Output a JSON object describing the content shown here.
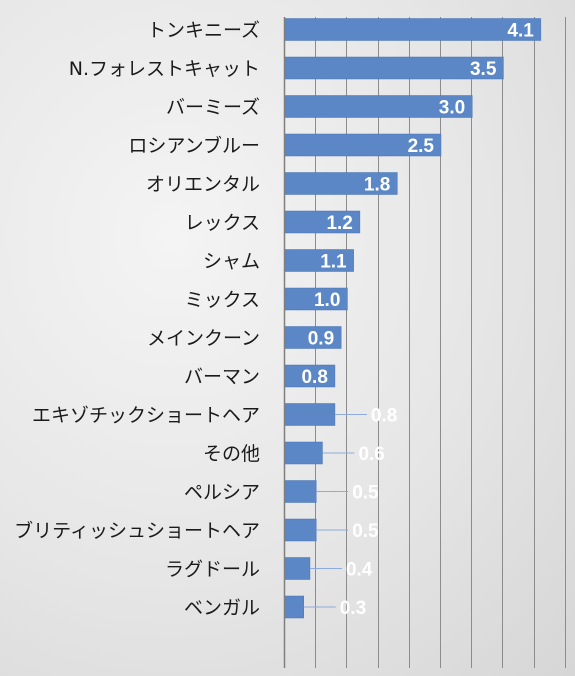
{
  "chart_data": {
    "type": "bar",
    "orientation": "horizontal",
    "title": "",
    "xlabel": "",
    "ylabel": "",
    "categories": [
      "トンキニーズ",
      "N.フォレストキャット",
      "バーミーズ",
      "ロシアンブルー",
      "オリエンタル",
      "レックス",
      "シャム",
      "ミックス",
      "メインクーン",
      "バーマン",
      "エキゾチックショートヘア",
      "その他",
      "ペルシア",
      "ブリティッシュショートヘア",
      "ラグドール",
      "ベンガル"
    ],
    "values": [
      4.1,
      3.5,
      3.0,
      2.5,
      1.8,
      1.2,
      1.1,
      1.0,
      0.9,
      0.8,
      0.8,
      0.6,
      0.5,
      0.5,
      0.4,
      0.3
    ],
    "value_labels": [
      "4.1",
      "3.5",
      "3.0",
      "2.5",
      "1.8",
      "1.2",
      "1.1",
      "1.0",
      "0.9",
      "0.8",
      "0.8",
      "0.6",
      "0.5",
      "0.5",
      "0.4",
      "0.3"
    ],
    "xlim": [
      0,
      4.5
    ],
    "grid": "vertical",
    "legend": "none",
    "colors": {
      "bar": "#5b87c7",
      "bar_edge": "#4a74b3",
      "grid": "#8c8c8c",
      "axis": "#7f7f7f",
      "leader": "#8faadc",
      "category_text": "#1a1a1a",
      "value_text": "#ffffff"
    }
  }
}
